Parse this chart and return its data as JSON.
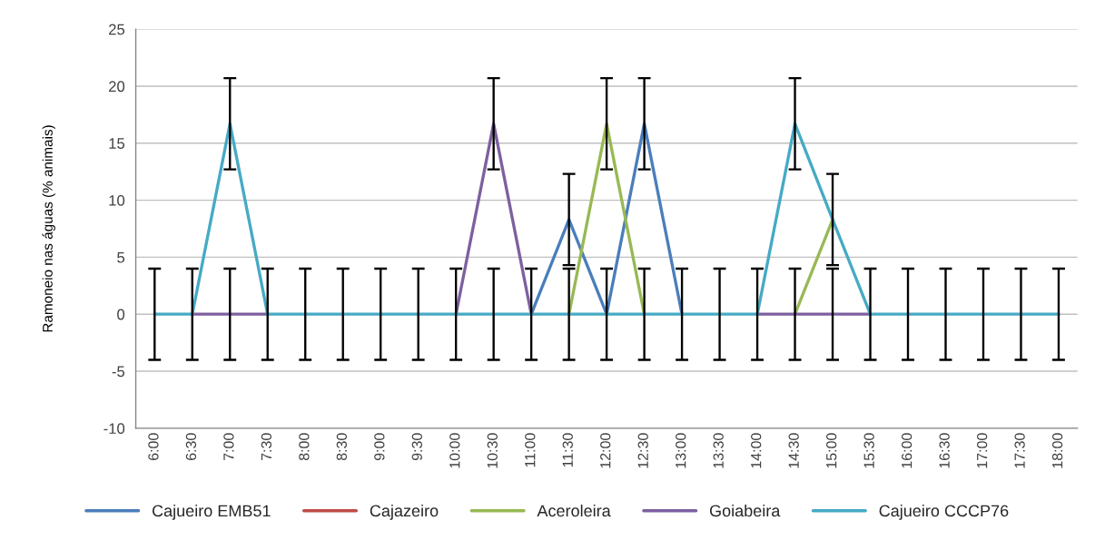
{
  "chart_data": {
    "type": "line",
    "ylabel": "Ramoneio nas águas (% animais)",
    "categories": [
      "6:00",
      "6:30",
      "7:00",
      "7:30",
      "8:00",
      "8:30",
      "9:00",
      "9:30",
      "10:00",
      "10:30",
      "11:00",
      "11:30",
      "12:00",
      "12:30",
      "13:00",
      "13:30",
      "14:00",
      "14:30",
      "15:00",
      "15:30",
      "16:00",
      "16:30",
      "17:00",
      "17:30",
      "18:00"
    ],
    "series": [
      {
        "name": "Cajueiro EMB51",
        "color": "#4a7ebb",
        "values": [
          null,
          null,
          null,
          null,
          null,
          null,
          null,
          null,
          null,
          null,
          0,
          8.3,
          0,
          16.7,
          0,
          null,
          null,
          null,
          null,
          null,
          null,
          null,
          null,
          null,
          null
        ],
        "errors": [
          null,
          null,
          null,
          null,
          null,
          null,
          null,
          null,
          null,
          null,
          null,
          4,
          null,
          4,
          null,
          null,
          null,
          null,
          null,
          null,
          null,
          null,
          null,
          null,
          null
        ]
      },
      {
        "name": "Cajazeiro",
        "color": "#be4b48",
        "values": [
          null,
          null,
          null,
          null,
          null,
          null,
          null,
          null,
          null,
          null,
          null,
          null,
          null,
          null,
          null,
          null,
          null,
          null,
          null,
          null,
          null,
          null,
          null,
          null,
          null
        ],
        "errors": [
          null,
          null,
          null,
          null,
          null,
          null,
          null,
          null,
          null,
          null,
          null,
          null,
          null,
          null,
          null,
          null,
          null,
          null,
          null,
          null,
          null,
          null,
          null,
          null,
          null
        ]
      },
      {
        "name": "Aceroleira",
        "color": "#98b954",
        "values": [
          null,
          null,
          null,
          null,
          null,
          null,
          null,
          null,
          null,
          null,
          null,
          0,
          16.7,
          0,
          null,
          null,
          null,
          0,
          8.3,
          null,
          null,
          null,
          null,
          null,
          null
        ],
        "errors": [
          null,
          null,
          null,
          null,
          null,
          null,
          null,
          null,
          null,
          null,
          null,
          null,
          4,
          null,
          null,
          null,
          null,
          null,
          null,
          null,
          null,
          null,
          null,
          null,
          null
        ]
      },
      {
        "name": "Goiabeira",
        "color": "#7d60a0",
        "values": [
          null,
          0,
          0,
          0,
          null,
          null,
          null,
          null,
          0,
          16.7,
          0,
          null,
          null,
          null,
          null,
          null,
          0,
          0,
          0,
          0,
          null,
          null,
          null,
          null,
          null
        ],
        "errors": [
          null,
          null,
          4,
          null,
          null,
          null,
          null,
          null,
          null,
          4,
          null,
          null,
          null,
          null,
          null,
          null,
          null,
          4,
          4,
          null,
          null,
          null,
          null,
          null,
          null
        ]
      },
      {
        "name": "Cajueiro CCCP76",
        "color": "#46aac5",
        "values": [
          0,
          0,
          16.7,
          0,
          0,
          0,
          0,
          0,
          0,
          0,
          0,
          0,
          0,
          0,
          0,
          0,
          0,
          16.7,
          8.3,
          0,
          0,
          0,
          0,
          0,
          0
        ],
        "errors": [
          4,
          4,
          4,
          4,
          4,
          4,
          4,
          4,
          4,
          4,
          4,
          4,
          4,
          4,
          4,
          4,
          4,
          4,
          4,
          4,
          4,
          4,
          4,
          4,
          4
        ]
      }
    ],
    "ylim": [
      -10,
      25
    ],
    "yticks": [
      -10,
      -5,
      0,
      5,
      10,
      15,
      20,
      25
    ],
    "grid": "y",
    "legend": "bottom"
  }
}
